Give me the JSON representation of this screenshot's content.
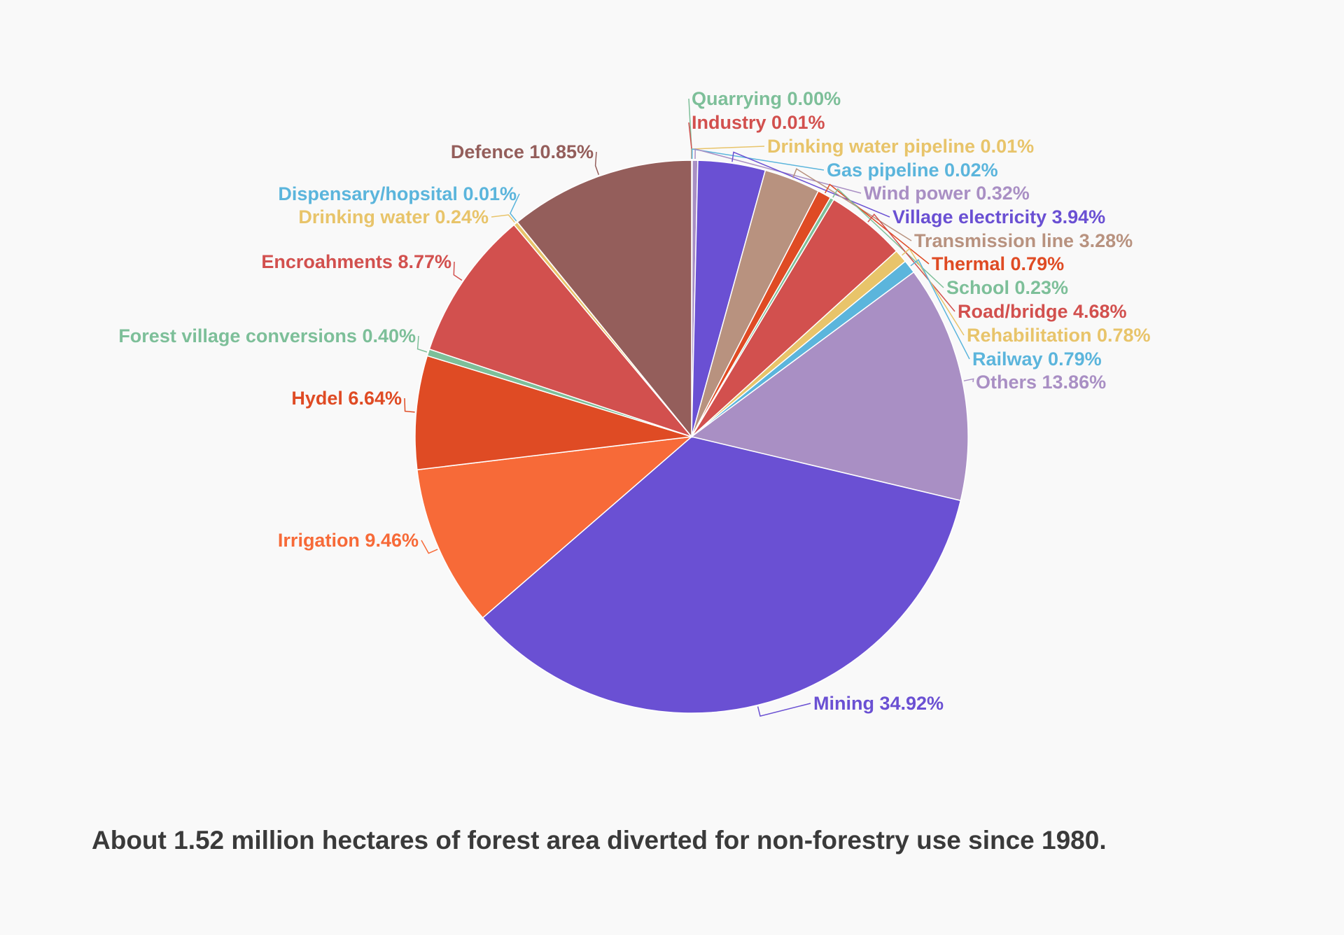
{
  "chart_data": {
    "type": "pie",
    "slices": [
      {
        "name": "Quarrying",
        "value": 0.0,
        "label": "Quarrying 0.00%",
        "color": "#7dbf99"
      },
      {
        "name": "Industry",
        "value": 0.01,
        "label": "Industry 0.01%",
        "color": "#d2504e"
      },
      {
        "name": "Drinking water pipeline",
        "value": 0.01,
        "label": "Drinking water pipeline 0.01%",
        "color": "#e8c46a"
      },
      {
        "name": "Gas pipeline",
        "value": 0.02,
        "label": "Gas pipeline 0.02%",
        "color": "#5bb5dc"
      },
      {
        "name": "Wind power",
        "value": 0.32,
        "label": "Wind power 0.32%",
        "color": "#a98fc4"
      },
      {
        "name": "Village electricity",
        "value": 3.94,
        "label": "Village electricity 3.94%",
        "color": "#6a50d3"
      },
      {
        "name": "Transmission line",
        "value": 3.28,
        "label": "Transmission line 3.28%",
        "color": "#b8927f"
      },
      {
        "name": "Thermal",
        "value": 0.79,
        "label": "Thermal 0.79%",
        "color": "#df4b24"
      },
      {
        "name": "School",
        "value": 0.23,
        "label": "School 0.23%",
        "color": "#7dbf99"
      },
      {
        "name": "Road/bridge",
        "value": 4.68,
        "label": "Road/bridge 4.68%",
        "color": "#d2504e"
      },
      {
        "name": "Rehabilitation",
        "value": 0.78,
        "label": "Rehabilitation 0.78%",
        "color": "#e8c46a"
      },
      {
        "name": "Railway",
        "value": 0.79,
        "label": "Railway 0.79%",
        "color": "#5bb5dc"
      },
      {
        "name": "Others",
        "value": 13.86,
        "label": "Others 13.86%",
        "color": "#a98fc4"
      },
      {
        "name": "Mining",
        "value": 34.92,
        "label": "Mining 34.92%",
        "color": "#6a50d3"
      },
      {
        "name": "Irrigation",
        "value": 9.46,
        "label": "Irrigation 9.46%",
        "color": "#f76a38"
      },
      {
        "name": "Hydel",
        "value": 6.64,
        "label": "Hydel 6.64%",
        "color": "#df4b24"
      },
      {
        "name": "Forest village conversions",
        "value": 0.4,
        "label": "Forest village conversions 0.40%",
        "color": "#7dbf99"
      },
      {
        "name": "Encroahments",
        "value": 8.77,
        "label": "Encroahments 8.77%",
        "color": "#d2504e"
      },
      {
        "name": "Drinking water",
        "value": 0.24,
        "label": "Drinking water 0.24%",
        "color": "#e8c46a"
      },
      {
        "name": "Dispensary/hopsital",
        "value": 0.01,
        "label": "Dispensary/hopsital 0.01%",
        "color": "#5bb5dc"
      },
      {
        "name": "Defence",
        "value": 10.85,
        "label": "Defence 10.85%",
        "color": "#945e5b"
      }
    ]
  },
  "caption": "About 1.52 million hectares of forest area diverted for non-forestry use since 1980."
}
